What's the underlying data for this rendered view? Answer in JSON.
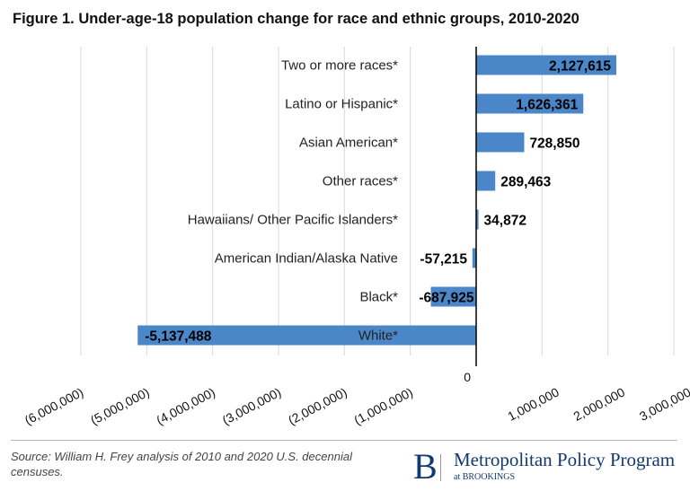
{
  "chart_data": {
    "type": "bar",
    "orientation": "horizontal",
    "title": "Figure 1. Under-age-18 population change for race and ethnic groups, 2010-2020",
    "categories": [
      "Two or more races*",
      "Latino or Hispanic*",
      "Asian American*",
      "Other races*",
      "Hawaiians/ Other Pacific Islanders*",
      "American Indian/Alaska Native",
      "Black*",
      "White*"
    ],
    "values": [
      2127615,
      1626361,
      728850,
      289463,
      34872,
      -57215,
      -687925,
      -5137488
    ],
    "data_labels": [
      "2,127,615",
      "1,626,361",
      "728,850",
      "289,463",
      "34,872",
      "-57,215",
      "-687,925",
      "-5,137,488"
    ],
    "xlim": [
      -6000000,
      3000000
    ],
    "x_ticks": [
      -6000000,
      -5000000,
      -4000000,
      -3000000,
      -2000000,
      -1000000,
      0,
      1000000,
      2000000,
      3000000
    ],
    "x_tick_labels": [
      "(6,000,000)",
      "(5,000,000)",
      "(4,000,000)",
      "(3,000,000)",
      "(2,000,000)",
      "(1,000,000)",
      "0",
      "1,000,000",
      "2,000,000",
      "3,000,000"
    ],
    "grid": true,
    "bar_color": "#4a86c8"
  },
  "footer": {
    "source": "Source: William H. Frey analysis of 2010 and 2020 U.S. decennial censuses.",
    "logo_letter": "B",
    "logo_name": "Metropolitan Policy Program",
    "logo_sub": "at BROOKINGS"
  }
}
